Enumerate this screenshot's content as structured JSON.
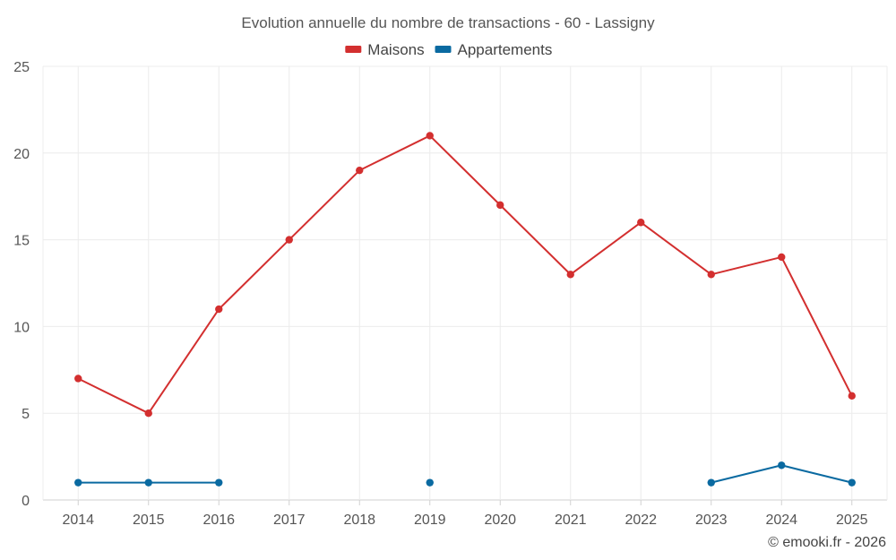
{
  "chart_data": {
    "type": "line",
    "title": "Evolution annuelle du nombre de transactions - 60 - Lassigny",
    "xlabel": "",
    "ylabel": "",
    "categories": [
      "2014",
      "2015",
      "2016",
      "2017",
      "2018",
      "2019",
      "2020",
      "2021",
      "2022",
      "2023",
      "2024",
      "2025"
    ],
    "ylim": [
      0,
      25
    ],
    "yticks": [
      0,
      5,
      10,
      15,
      20,
      25
    ],
    "grid": true,
    "legend_position": "top-center",
    "series": [
      {
        "name": "Maisons",
        "color": "#d32f2f",
        "values": [
          7,
          5,
          11,
          15,
          19,
          21,
          17,
          13,
          16,
          13,
          14,
          6
        ]
      },
      {
        "name": "Appartements",
        "color": "#0a6aa1",
        "values": [
          1,
          1,
          1,
          null,
          null,
          1,
          null,
          null,
          null,
          1,
          2,
          1
        ]
      }
    ]
  },
  "credit": "© emooki.fr - 2026"
}
